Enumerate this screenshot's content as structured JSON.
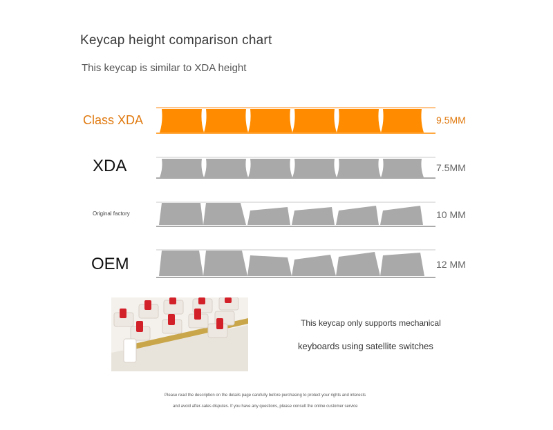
{
  "title": "Keycap height comparison chart",
  "subtitle": "This keycap is similar to XDA height",
  "rows": [
    {
      "label": "Class XDA",
      "value": "9.5MM",
      "color": "#ff8c00"
    },
    {
      "label": "XDA",
      "value": "7.5MM",
      "color": "#a9a9a9"
    },
    {
      "label": "Original factory",
      "value": "10 MM",
      "color": "#a9a9a9"
    },
    {
      "label": "OEM",
      "value": "12 MM",
      "color": "#a9a9a9"
    }
  ],
  "accent_color": "#e07a10",
  "photo": {
    "description_icon": "keyboard-switches-photo"
  },
  "note_line1": "This keycap only supports mechanical",
  "note_line2": "keyboards using satellite switches",
  "disclaimer_line1": "Please read the description on the details page carefully before purchasing to protect your rights and interests",
  "disclaimer_line2": "and avoid after-sales disputes. If you have any questions, please consult the online customer service"
}
